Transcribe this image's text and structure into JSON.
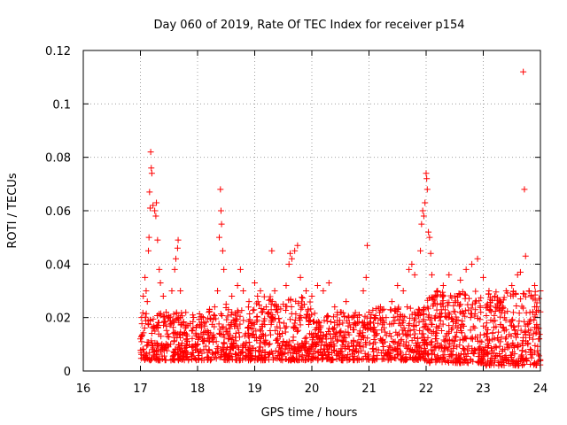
{
  "chart_data": {
    "type": "scatter",
    "title": "Day 060 of 2019, Rate Of TEC Index for receiver p154",
    "xlabel": "GPS time / hours",
    "ylabel": "ROTI / TECUs",
    "xlim": [
      16,
      24
    ],
    "ylim": [
      0,
      0.12
    ],
    "x_ticks": [
      16,
      17,
      18,
      19,
      20,
      21,
      22,
      23,
      24
    ],
    "y_ticks": [
      0,
      0.02,
      0.04,
      0.06,
      0.08,
      0.1,
      0.12
    ],
    "x_tick_labels": [
      "16",
      "17",
      "18",
      "19",
      "20",
      "21",
      "22",
      "23",
      "24"
    ],
    "y_tick_labels": [
      "0",
      "0.02",
      "0.04",
      "0.06",
      "0.08",
      "0.1",
      "0.12"
    ],
    "grid": true,
    "marker": "+",
    "color": "#ff0000",
    "series": [
      {
        "name": "ROTI",
        "points": [
          [
            17.0,
            0.012
          ],
          [
            17.02,
            0.02
          ],
          [
            17.05,
            0.028
          ],
          [
            17.08,
            0.035
          ],
          [
            17.1,
            0.03
          ],
          [
            17.12,
            0.026
          ],
          [
            17.15,
            0.05
          ],
          [
            17.17,
            0.061
          ],
          [
            17.18,
            0.082
          ],
          [
            17.19,
            0.076
          ],
          [
            17.2,
            0.074
          ],
          [
            17.22,
            0.062
          ],
          [
            17.25,
            0.06
          ],
          [
            17.27,
            0.058
          ],
          [
            17.28,
            0.063
          ],
          [
            17.3,
            0.049
          ],
          [
            17.16,
            0.067
          ],
          [
            17.14,
            0.045
          ],
          [
            17.33,
            0.038
          ],
          [
            17.35,
            0.033
          ],
          [
            17.4,
            0.028
          ],
          [
            17.45,
            0.022
          ],
          [
            17.5,
            0.02
          ],
          [
            17.55,
            0.03
          ],
          [
            17.6,
            0.038
          ],
          [
            17.62,
            0.042
          ],
          [
            17.65,
            0.046
          ],
          [
            17.66,
            0.049
          ],
          [
            17.7,
            0.03
          ],
          [
            17.75,
            0.018
          ],
          [
            17.8,
            0.012
          ],
          [
            17.9,
            0.015
          ],
          [
            18.0,
            0.017
          ],
          [
            18.1,
            0.02
          ],
          [
            18.2,
            0.022
          ],
          [
            18.3,
            0.024
          ],
          [
            18.35,
            0.03
          ],
          [
            18.38,
            0.05
          ],
          [
            18.4,
            0.068
          ],
          [
            18.41,
            0.06
          ],
          [
            18.42,
            0.055
          ],
          [
            18.44,
            0.045
          ],
          [
            18.46,
            0.038
          ],
          [
            18.5,
            0.025
          ],
          [
            18.6,
            0.028
          ],
          [
            18.7,
            0.032
          ],
          [
            18.75,
            0.038
          ],
          [
            18.8,
            0.03
          ],
          [
            18.9,
            0.026
          ],
          [
            19.0,
            0.033
          ],
          [
            19.05,
            0.028
          ],
          [
            19.1,
            0.03
          ],
          [
            19.2,
            0.024
          ],
          [
            19.3,
            0.045
          ],
          [
            19.35,
            0.03
          ],
          [
            19.4,
            0.022
          ],
          [
            19.5,
            0.025
          ],
          [
            19.55,
            0.032
          ],
          [
            19.6,
            0.04
          ],
          [
            19.62,
            0.044
          ],
          [
            19.65,
            0.042
          ],
          [
            19.7,
            0.045
          ],
          [
            19.75,
            0.047
          ],
          [
            19.8,
            0.035
          ],
          [
            19.9,
            0.03
          ],
          [
            20.0,
            0.028
          ],
          [
            20.1,
            0.032
          ],
          [
            20.2,
            0.03
          ],
          [
            20.3,
            0.033
          ],
          [
            20.4,
            0.024
          ],
          [
            20.5,
            0.022
          ],
          [
            20.6,
            0.026
          ],
          [
            20.7,
            0.02
          ],
          [
            20.8,
            0.018
          ],
          [
            20.9,
            0.03
          ],
          [
            20.95,
            0.035
          ],
          [
            20.97,
            0.047
          ],
          [
            21.0,
            0.022
          ],
          [
            21.1,
            0.02
          ],
          [
            21.2,
            0.024
          ],
          [
            21.3,
            0.02
          ],
          [
            21.4,
            0.026
          ],
          [
            21.5,
            0.032
          ],
          [
            21.6,
            0.03
          ],
          [
            21.7,
            0.038
          ],
          [
            21.75,
            0.04
          ],
          [
            21.8,
            0.036
          ],
          [
            21.9,
            0.045
          ],
          [
            21.92,
            0.055
          ],
          [
            21.94,
            0.06
          ],
          [
            21.96,
            0.058
          ],
          [
            21.98,
            0.063
          ],
          [
            22.0,
            0.074
          ],
          [
            22.01,
            0.072
          ],
          [
            22.02,
            0.068
          ],
          [
            22.04,
            0.052
          ],
          [
            22.06,
            0.05
          ],
          [
            22.08,
            0.044
          ],
          [
            22.1,
            0.036
          ],
          [
            22.2,
            0.03
          ],
          [
            22.3,
            0.032
          ],
          [
            22.4,
            0.036
          ],
          [
            22.5,
            0.028
          ],
          [
            22.6,
            0.034
          ],
          [
            22.7,
            0.038
          ],
          [
            22.8,
            0.04
          ],
          [
            22.9,
            0.042
          ],
          [
            23.0,
            0.035
          ],
          [
            23.1,
            0.03
          ],
          [
            23.2,
            0.028
          ],
          [
            23.3,
            0.026
          ],
          [
            23.4,
            0.03
          ],
          [
            23.5,
            0.032
          ],
          [
            23.6,
            0.036
          ],
          [
            23.65,
            0.037
          ],
          [
            23.7,
            0.112
          ],
          [
            23.72,
            0.068
          ],
          [
            23.74,
            0.043
          ],
          [
            23.8,
            0.03
          ],
          [
            23.9,
            0.032
          ],
          [
            24.0,
            0.03
          ],
          [
            17.05,
            0.008
          ],
          [
            17.3,
            0.01
          ],
          [
            17.6,
            0.007
          ],
          [
            17.9,
            0.009
          ],
          [
            18.2,
            0.011
          ],
          [
            18.5,
            0.008
          ],
          [
            18.8,
            0.01
          ],
          [
            19.1,
            0.009
          ],
          [
            19.4,
            0.012
          ],
          [
            19.7,
            0.008
          ],
          [
            20.0,
            0.01
          ],
          [
            20.3,
            0.007
          ],
          [
            20.6,
            0.011
          ],
          [
            20.9,
            0.009
          ],
          [
            21.2,
            0.012
          ],
          [
            21.5,
            0.01
          ],
          [
            21.8,
            0.008
          ],
          [
            22.1,
            0.011
          ],
          [
            22.4,
            0.009
          ],
          [
            22.7,
            0.012
          ],
          [
            23.0,
            0.008
          ],
          [
            23.3,
            0.011
          ],
          [
            23.6,
            0.009
          ],
          [
            23.9,
            0.007
          ],
          [
            23.05,
            0.002
          ],
          [
            23.5,
            0.004
          ],
          [
            22.6,
            0.005
          ],
          [
            21.1,
            0.004
          ],
          [
            20.2,
            0.005
          ]
        ]
      }
    ],
    "background_density": [
      {
        "from": 17.0,
        "to": 18.0,
        "low": 0.004,
        "high": 0.022,
        "count": 260
      },
      {
        "from": 18.0,
        "to": 19.0,
        "low": 0.004,
        "high": 0.024,
        "count": 260
      },
      {
        "from": 19.0,
        "to": 20.0,
        "low": 0.004,
        "high": 0.028,
        "count": 280
      },
      {
        "from": 20.0,
        "to": 21.0,
        "low": 0.004,
        "high": 0.022,
        "count": 260
      },
      {
        "from": 21.0,
        "to": 22.0,
        "low": 0.004,
        "high": 0.024,
        "count": 260
      },
      {
        "from": 22.0,
        "to": 23.0,
        "low": 0.003,
        "high": 0.03,
        "count": 300
      },
      {
        "from": 23.0,
        "to": 24.0,
        "low": 0.002,
        "high": 0.03,
        "count": 300
      }
    ]
  }
}
